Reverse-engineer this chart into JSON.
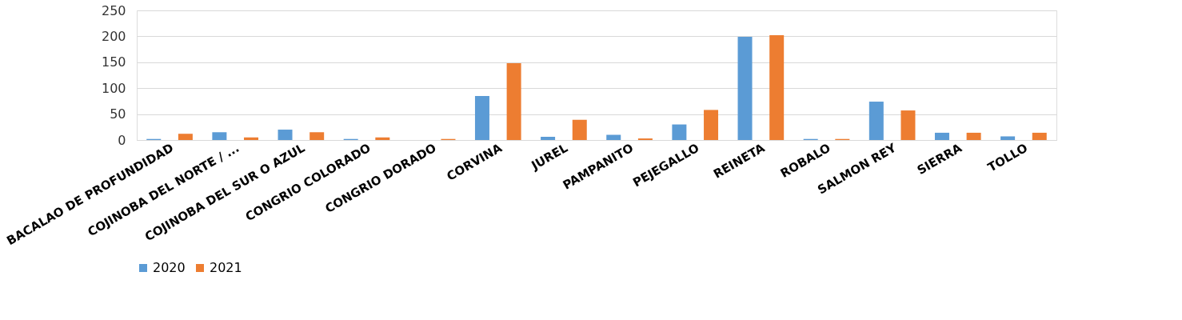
{
  "chart_data": {
    "type": "bar",
    "categories": [
      "BACALAO DE PROFUNDIDAD",
      "COJINOBA DEL NORTE / ...",
      "COJINOBA DEL SUR O AZUL",
      "CONGRIO COLORADO",
      "CONGRIO DORADO",
      "CORVINA",
      "JUREL",
      "PAMPANITO",
      "PEJEGALLO",
      "REINETA",
      "ROBALO",
      "SALMON REY",
      "SIERRA",
      "TOLLO"
    ],
    "series": [
      {
        "name": "2020",
        "color": "#5b9bd5",
        "values": [
          2,
          15,
          20,
          2,
          null,
          85,
          6,
          10,
          30,
          199,
          2,
          74,
          14,
          7
        ]
      },
      {
        "name": "2021",
        "color": "#ed7d31",
        "values": [
          12,
          5,
          15,
          5,
          2,
          148,
          39,
          3,
          58,
          202,
          2,
          57,
          14,
          14
        ]
      }
    ],
    "ylim": [
      0,
      250
    ],
    "yticks": [
      0,
      50,
      100,
      150,
      200,
      250
    ],
    "grid": "y",
    "legend": "bottom"
  }
}
